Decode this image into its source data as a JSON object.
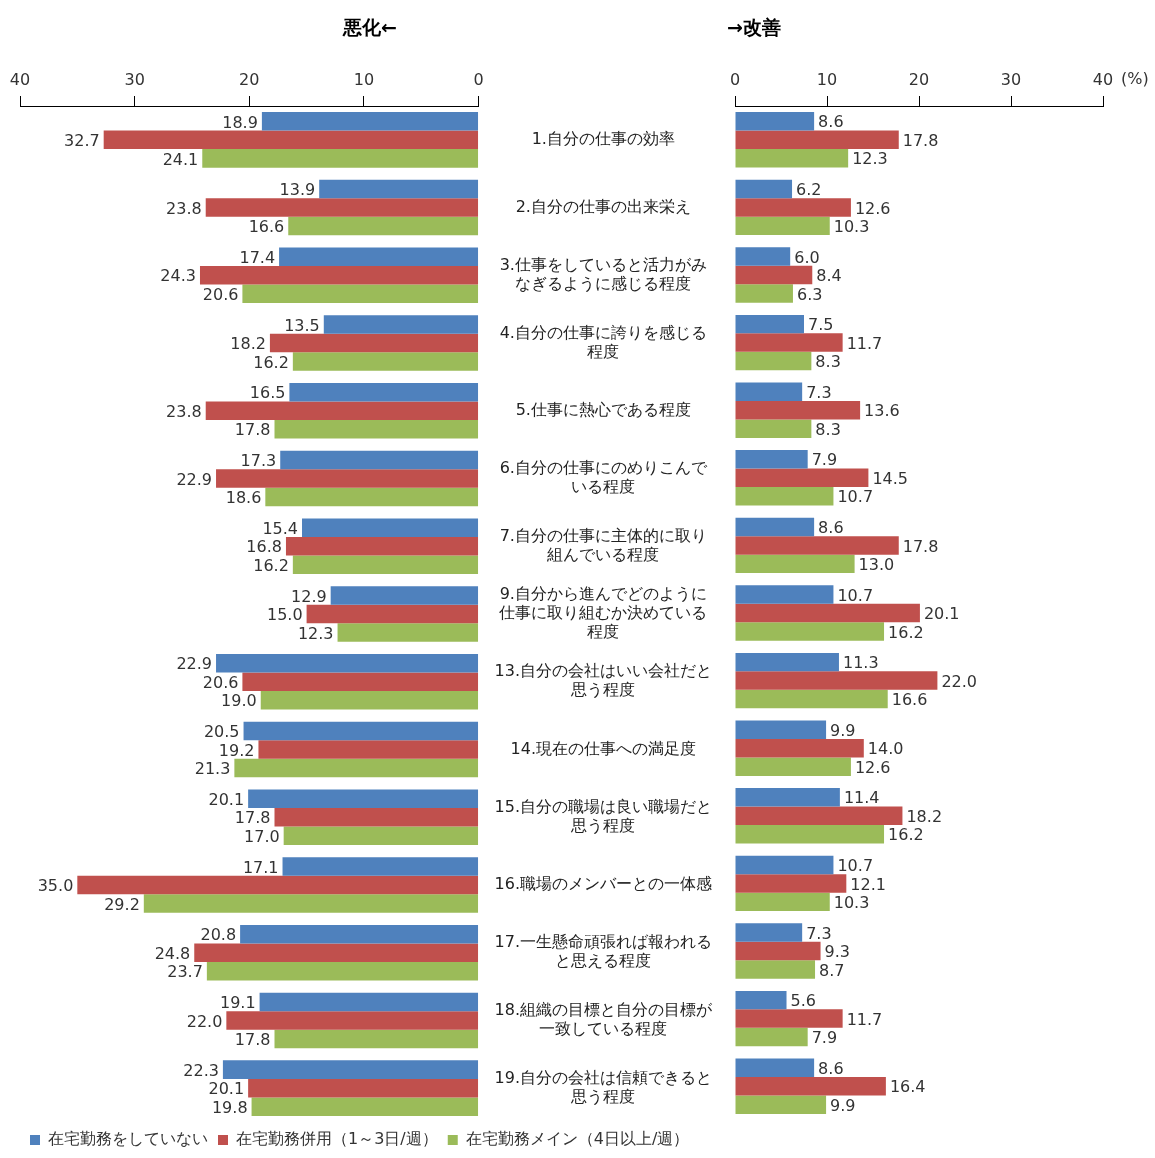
{
  "chart_data": [
    {
      "type": "bar",
      "orientation": "horizontal",
      "title": "悪化←",
      "legend": "bottom",
      "grid": false,
      "categories": [
        "1.自分の仕事の効率",
        "2.自分の仕事の出来栄え",
        "3.仕事をしていると活力がみなぎるように感じる程度",
        "4.自分の仕事に誇りを感じる程度",
        "5.仕事に熱心である程度",
        "6.自分の仕事にのめりこんでいる程度",
        "7.自分の仕事に主体的に取り組んでいる程度",
        "9.自分から進んでどのように仕事に取り組むか決めている程度",
        "13.自分の会社はいい会社だと思う程度",
        "14.現在の仕事への満足度",
        "15.自分の職場は良い職場だと思う程度",
        "16.職場のメンバーとの一体感",
        "17.一生懸命頑張れば報われると思える程度",
        "18.組織の目標と自分の目標が一致している程度",
        "19.自分の会社は信頼できると思う程度"
      ],
      "xlim": [
        40,
        0
      ],
      "xticks": [
        40,
        30,
        20,
        10,
        0
      ],
      "series": [
        {
          "name": "在宅勤務をしていない",
          "color": "#4f81bd",
          "values": [
            18.9,
            13.9,
            17.4,
            13.5,
            16.5,
            17.3,
            15.4,
            12.9,
            22.9,
            20.5,
            20.1,
            17.1,
            20.8,
            19.1,
            22.3
          ],
          "value_labels": [
            "18.9",
            "13.9",
            "17.4",
            "13.5",
            "16.5",
            "17.3",
            "15.4",
            "12.9",
            "22.9",
            "20.5",
            "20.1",
            "17.1",
            "20.8",
            "19.1",
            "22.3"
          ]
        },
        {
          "name": "在宅勤務併用（1～3日/週）",
          "color": "#c0504d",
          "values": [
            32.7,
            23.8,
            24.3,
            18.2,
            23.8,
            22.9,
            16.8,
            15.0,
            20.6,
            19.2,
            17.8,
            35.0,
            24.8,
            22.0,
            20.1
          ],
          "value_labels": [
            "32.7",
            "23.8",
            "24.3",
            "18.2",
            "23.8",
            "22.9",
            "16.8",
            "15.0",
            "20.6",
            "19.2",
            "17.8",
            "35.0",
            "24.8",
            "22.0",
            "20.1"
          ]
        },
        {
          "name": "在宅勤務メイン（4日以上/週）",
          "color": "#9bbb59",
          "values": [
            24.1,
            16.6,
            20.6,
            16.2,
            17.8,
            18.6,
            16.2,
            12.3,
            19.0,
            21.3,
            17.0,
            29.2,
            23.7,
            17.8,
            19.8
          ],
          "value_labels": [
            "24.1",
            "16.6",
            "20.6",
            "16.2",
            "17.8",
            "18.6",
            "16.2",
            "12.3",
            "19.0",
            "21.3",
            "17.0",
            "29.2",
            "23.7",
            "17.8",
            "19.8"
          ]
        }
      ]
    },
    {
      "type": "bar",
      "orientation": "horizontal",
      "title": "→改善",
      "xlabel": "(%)",
      "grid": false,
      "tick_labels": "x",
      "categories": [
        null,
        null,
        null,
        null,
        null,
        null,
        null,
        null,
        null,
        null,
        null,
        null,
        null,
        null,
        null
      ],
      "xlim": [
        0,
        40
      ],
      "xticks": [
        0,
        10,
        20,
        30,
        40
      ],
      "series": [
        {
          "color": "#4f81bd",
          "values": [
            8.6,
            6.2,
            6.0,
            7.5,
            7.3,
            7.9,
            8.6,
            10.7,
            11.3,
            9.9,
            11.4,
            10.7,
            7.3,
            5.6,
            8.6
          ],
          "value_labels": [
            "8.6",
            "6.2",
            "6.0",
            "7.5",
            "7.3",
            "7.9",
            "8.6",
            "10.7",
            "11.3",
            "9.9",
            "11.4",
            "10.7",
            "7.3",
            "5.6",
            "8.6"
          ]
        },
        {
          "color": "#c0504d",
          "values": [
            17.8,
            12.6,
            8.4,
            11.7,
            13.6,
            14.5,
            17.8,
            20.1,
            22.0,
            14.0,
            18.2,
            12.1,
            9.3,
            11.7,
            16.4
          ],
          "value_labels": [
            "17.8",
            "12.6",
            "8.4",
            "11.7",
            "13.6",
            "14.5",
            "17.8",
            "20.1",
            "22.0",
            "14.0",
            "18.2",
            "12.1",
            "9.3",
            "11.7",
            "16.4"
          ]
        },
        {
          "color": "#9bbb59",
          "values": [
            12.3,
            10.3,
            6.3,
            8.3,
            8.3,
            10.7,
            13.0,
            16.2,
            16.6,
            12.6,
            16.2,
            10.3,
            8.7,
            7.9,
            9.9
          ],
          "value_labels": [
            "12.3",
            "10.3",
            "6.3",
            "8.3",
            "8.3",
            "10.7",
            "13.0",
            "16.2",
            "16.6",
            "12.6",
            "16.2",
            "10.3",
            "8.7",
            "7.9",
            "9.9"
          ]
        }
      ]
    }
  ]
}
